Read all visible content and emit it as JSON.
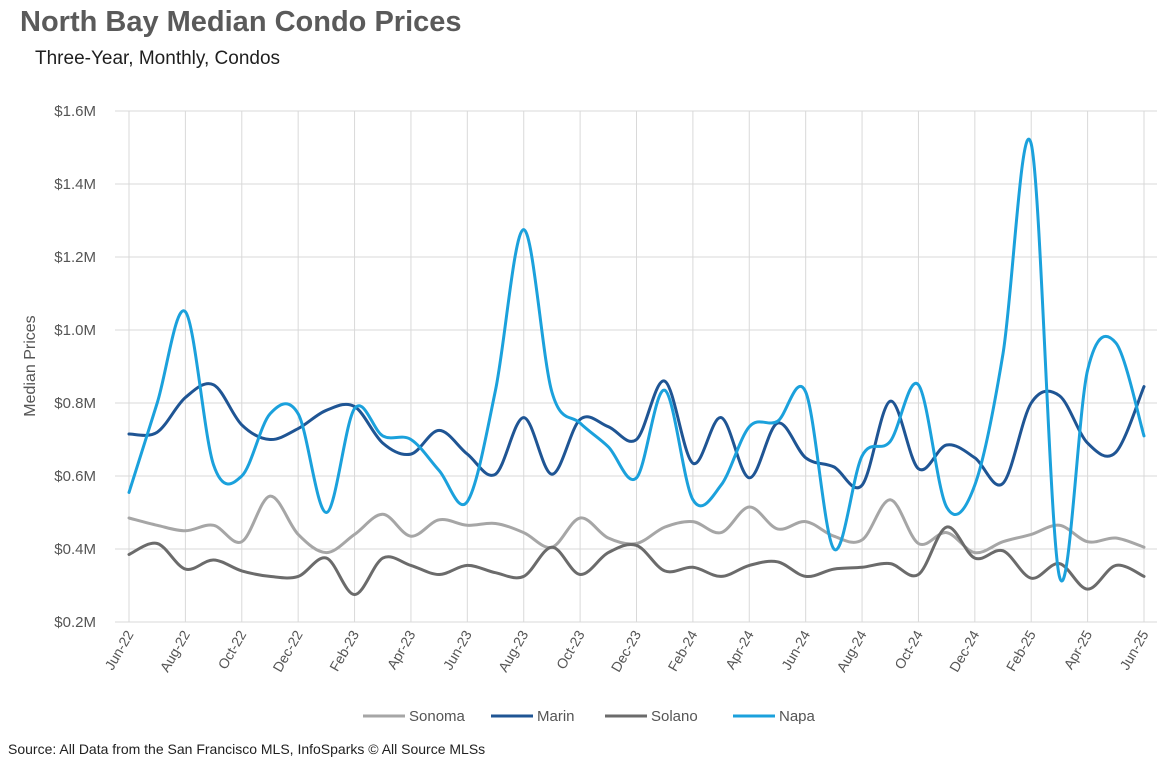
{
  "chart_data": {
    "type": "line",
    "title": "North Bay Median Condo Prices",
    "subtitle": "Three-Year, Monthly, Condos",
    "ylabel": "Median Prices",
    "xlabel": "",
    "ylim": [
      200000,
      1600000
    ],
    "yticks": [
      {
        "value": 200000,
        "label": "$0.2M"
      },
      {
        "value": 400000,
        "label": "$0.4M"
      },
      {
        "value": 600000,
        "label": "$0.6M"
      },
      {
        "value": 800000,
        "label": "$0.8M"
      },
      {
        "value": 1000000,
        "label": "$1.0M"
      },
      {
        "value": 1200000,
        "label": "$1.2M"
      },
      {
        "value": 1400000,
        "label": "$1.4M"
      },
      {
        "value": 1600000,
        "label": "$1.6M"
      }
    ],
    "grid": true,
    "legend_position": "bottom",
    "x": [
      "Jun-22",
      "Jul-22",
      "Aug-22",
      "Sep-22",
      "Oct-22",
      "Nov-22",
      "Dec-22",
      "Jan-23",
      "Feb-23",
      "Mar-23",
      "Apr-23",
      "May-23",
      "Jun-23",
      "Jul-23",
      "Aug-23",
      "Sep-23",
      "Oct-23",
      "Nov-23",
      "Dec-23",
      "Jan-24",
      "Feb-24",
      "Mar-24",
      "Apr-24",
      "May-24",
      "Jun-24",
      "Jul-24",
      "Aug-24",
      "Sep-24",
      "Oct-24",
      "Nov-24",
      "Dec-24",
      "Jan-25",
      "Feb-25",
      "Mar-25",
      "Apr-25",
      "May-25",
      "Jun-25"
    ],
    "xtick_labels": [
      "Jun-22",
      "Aug-22",
      "Oct-22",
      "Dec-22",
      "Feb-23",
      "Apr-23",
      "Jun-23",
      "Aug-23",
      "Oct-23",
      "Dec-23",
      "Feb-24",
      "Apr-24",
      "Jun-24",
      "Aug-24",
      "Oct-24",
      "Dec-24",
      "Feb-25",
      "Apr-25",
      "Jun-25"
    ],
    "series": [
      {
        "name": "Sonoma",
        "color": "#a6a6a6",
        "values": [
          485000,
          465000,
          450000,
          465000,
          420000,
          545000,
          440000,
          390000,
          440000,
          495000,
          435000,
          480000,
          465000,
          470000,
          445000,
          405000,
          485000,
          430000,
          415000,
          460000,
          475000,
          445000,
          515000,
          455000,
          475000,
          435000,
          425000,
          535000,
          415000,
          445000,
          390000,
          420000,
          440000,
          465000,
          420000,
          430000,
          405000
        ]
      },
      {
        "name": "Marin",
        "color": "#1f5594",
        "values": [
          715000,
          720000,
          815000,
          850000,
          740000,
          700000,
          730000,
          780000,
          790000,
          690000,
          660000,
          725000,
          660000,
          605000,
          760000,
          605000,
          755000,
          735000,
          700000,
          860000,
          635000,
          760000,
          595000,
          745000,
          650000,
          625000,
          575000,
          805000,
          620000,
          685000,
          650000,
          580000,
          800000,
          820000,
          690000,
          665000,
          845000
        ]
      },
      {
        "name": "Solano",
        "color": "#6b6b6b",
        "values": [
          385000,
          415000,
          345000,
          370000,
          340000,
          325000,
          325000,
          375000,
          275000,
          375000,
          355000,
          330000,
          355000,
          335000,
          325000,
          405000,
          330000,
          390000,
          410000,
          340000,
          350000,
          325000,
          355000,
          365000,
          325000,
          345000,
          350000,
          360000,
          330000,
          460000,
          375000,
          395000,
          320000,
          360000,
          290000,
          355000,
          325000
        ]
      },
      {
        "name": "Napa",
        "color": "#1ba1dc",
        "values": [
          555000,
          800000,
          1050000,
          630000,
          600000,
          770000,
          770000,
          500000,
          785000,
          710000,
          700000,
          615000,
          530000,
          835000,
          1275000,
          830000,
          745000,
          680000,
          595000,
          835000,
          535000,
          575000,
          735000,
          750000,
          830000,
          400000,
          655000,
          695000,
          850000,
          515000,
          575000,
          935000,
          1510000,
          325000,
          890000,
          965000,
          710000
        ]
      }
    ]
  },
  "source_text": "Source: All Data from the San Francisco MLS, InfoSparks © All Source MLSs"
}
